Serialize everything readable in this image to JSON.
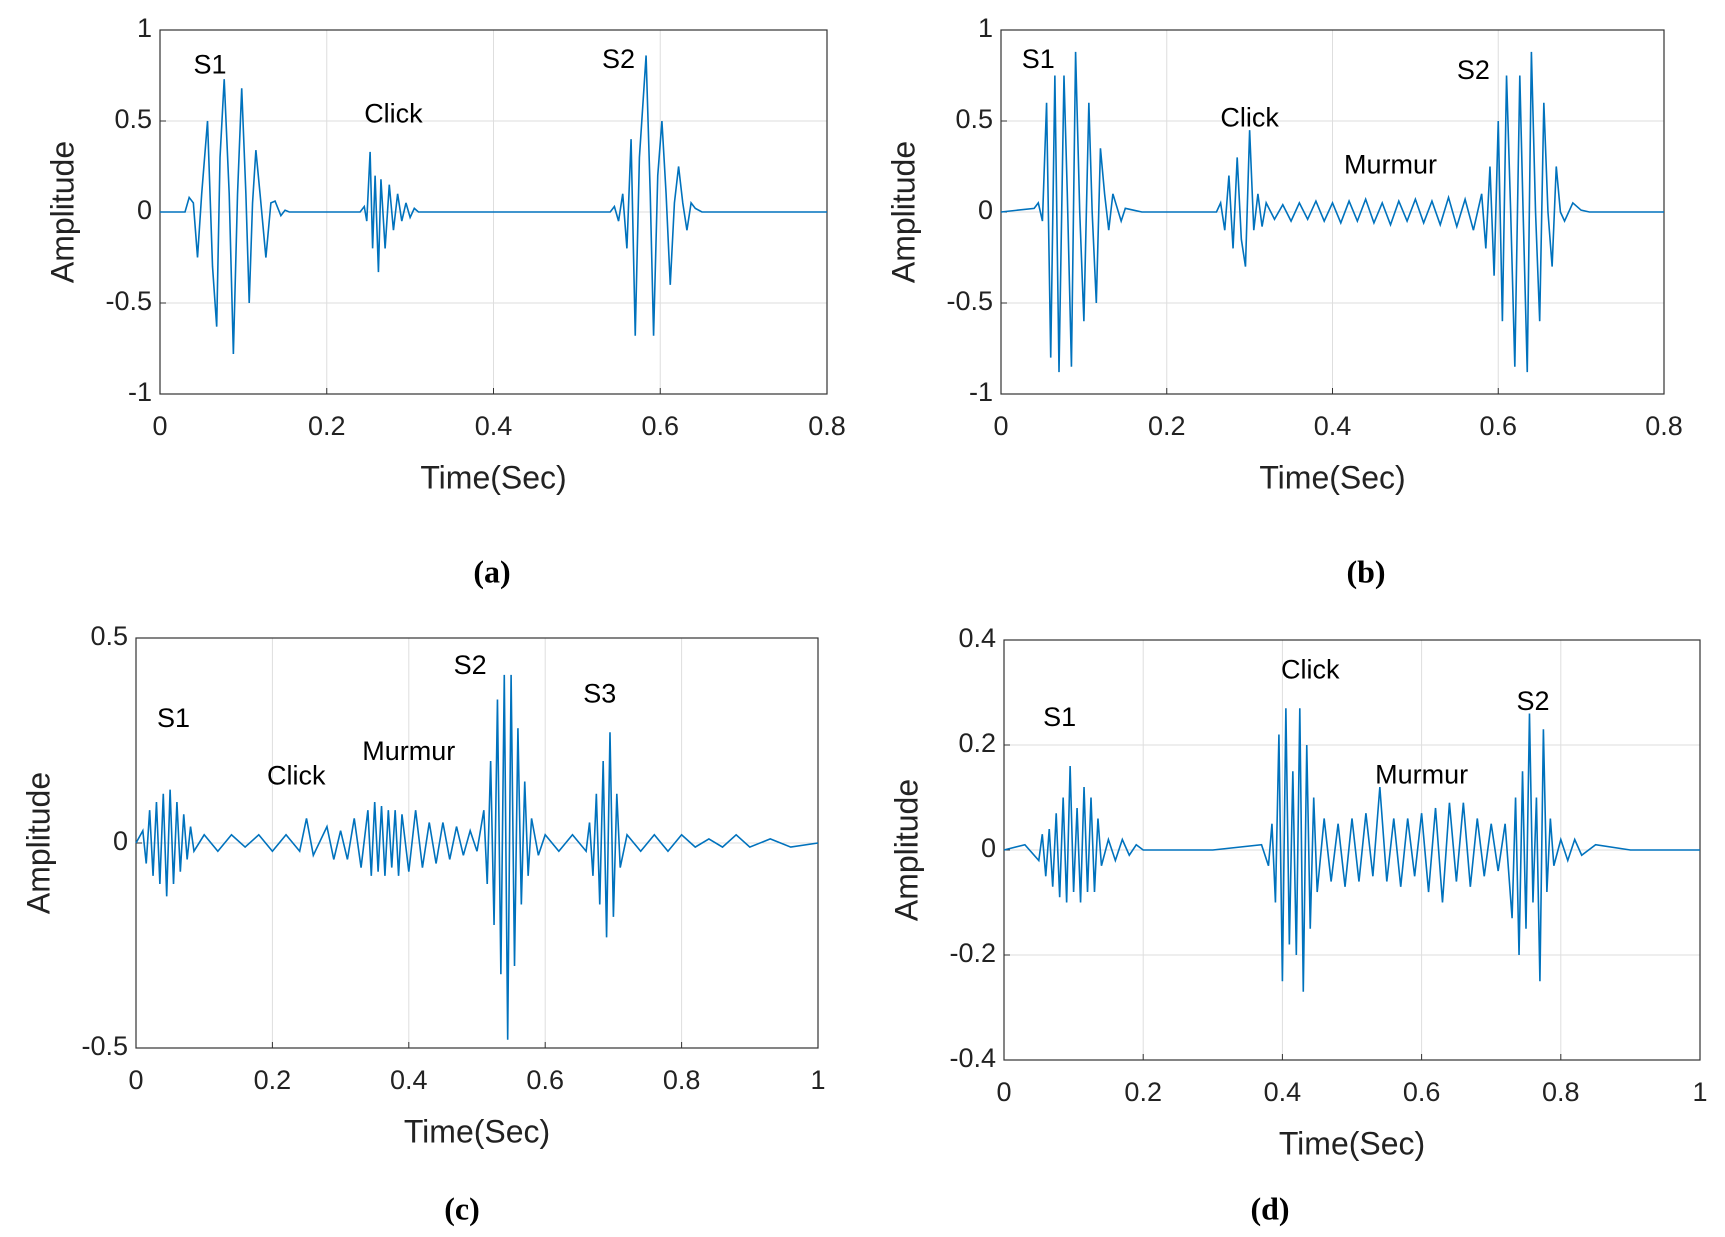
{
  "chart_data": [
    {
      "type": "line",
      "color": "#0072bd",
      "xlabel": "Time(Sec)",
      "ylabel": "Amplitude",
      "caption": "(a)",
      "grid": true,
      "xlim": [
        0,
        0.8
      ],
      "xticks": [
        0,
        0.2,
        0.4,
        0.6,
        0.8
      ],
      "ylim": [
        -1,
        1
      ],
      "yticks": [
        -1,
        -0.5,
        0,
        0.5,
        1
      ],
      "annotations": [
        {
          "text": "S1",
          "x": 0.06,
          "y": 0.8
        },
        {
          "text": "Click",
          "x": 0.28,
          "y": 0.53
        },
        {
          "text": "S2",
          "x": 0.55,
          "y": 0.83
        }
      ],
      "x": [
        0,
        0.03,
        0.035,
        0.04,
        0.045,
        0.05,
        0.057,
        0.063,
        0.068,
        0.072,
        0.077,
        0.083,
        0.088,
        0.093,
        0.098,
        0.103,
        0.107,
        0.111,
        0.115,
        0.12,
        0.127,
        0.133,
        0.138,
        0.145,
        0.15,
        0.155,
        0.24,
        0.245,
        0.248,
        0.252,
        0.255,
        0.258,
        0.262,
        0.265,
        0.27,
        0.275,
        0.28,
        0.285,
        0.29,
        0.295,
        0.3,
        0.305,
        0.31,
        0.54,
        0.545,
        0.55,
        0.555,
        0.56,
        0.565,
        0.57,
        0.575,
        0.583,
        0.588,
        0.592,
        0.597,
        0.602,
        0.607,
        0.612,
        0.617,
        0.622,
        0.627,
        0.632,
        0.637,
        0.642,
        0.65,
        0.8
      ],
      "values": [
        0,
        0,
        0.08,
        0.05,
        -0.25,
        0.1,
        0.5,
        -0.3,
        -0.63,
        0.3,
        0.73,
        0.1,
        -0.78,
        0.1,
        0.68,
        0.1,
        -0.5,
        0.05,
        0.34,
        0.1,
        -0.25,
        0.05,
        0.06,
        -0.02,
        0.01,
        0,
        0,
        0.03,
        -0.05,
        0.33,
        -0.2,
        0.2,
        -0.33,
        0.18,
        -0.2,
        0.15,
        -0.1,
        0.1,
        -0.05,
        0.05,
        -0.03,
        0.02,
        0,
        0,
        0.03,
        -0.05,
        0.1,
        -0.2,
        0.4,
        -0.68,
        0.3,
        0.86,
        0.1,
        -0.68,
        0.2,
        0.5,
        0.1,
        -0.4,
        0.05,
        0.25,
        0.05,
        -0.1,
        0.05,
        0.02,
        0,
        0
      ]
    },
    {
      "type": "line",
      "color": "#0072bd",
      "xlabel": "Time(Sec)",
      "ylabel": "Amplitude",
      "caption": "(b)",
      "grid": true,
      "xlim": [
        0,
        0.8
      ],
      "xticks": [
        0,
        0.2,
        0.4,
        0.6,
        0.8
      ],
      "ylim": [
        -1,
        1
      ],
      "yticks": [
        -1,
        -0.5,
        0,
        0.5,
        1
      ],
      "annotations": [
        {
          "text": "S1",
          "x": 0.045,
          "y": 0.83
        },
        {
          "text": "Click",
          "x": 0.3,
          "y": 0.51
        },
        {
          "text": "Murmur",
          "x": 0.47,
          "y": 0.25
        },
        {
          "text": "S2",
          "x": 0.57,
          "y": 0.77
        }
      ],
      "x": [
        0,
        0.04,
        0.045,
        0.05,
        0.055,
        0.06,
        0.065,
        0.07,
        0.076,
        0.08,
        0.085,
        0.09,
        0.095,
        0.1,
        0.106,
        0.11,
        0.115,
        0.12,
        0.125,
        0.13,
        0.135,
        0.145,
        0.15,
        0.16,
        0.17,
        0.26,
        0.265,
        0.27,
        0.275,
        0.28,
        0.285,
        0.29,
        0.295,
        0.3,
        0.305,
        0.31,
        0.315,
        0.32,
        0.33,
        0.34,
        0.35,
        0.36,
        0.37,
        0.38,
        0.39,
        0.4,
        0.41,
        0.42,
        0.43,
        0.44,
        0.45,
        0.46,
        0.47,
        0.48,
        0.49,
        0.5,
        0.51,
        0.52,
        0.53,
        0.54,
        0.55,
        0.56,
        0.57,
        0.58,
        0.585,
        0.59,
        0.595,
        0.6,
        0.605,
        0.61,
        0.615,
        0.62,
        0.626,
        0.63,
        0.635,
        0.64,
        0.645,
        0.65,
        0.655,
        0.66,
        0.665,
        0.67,
        0.675,
        0.68,
        0.69,
        0.7,
        0.71,
        0.8
      ],
      "values": [
        0,
        0.02,
        0.05,
        -0.05,
        0.6,
        -0.8,
        0.75,
        -0.88,
        0.75,
        0.1,
        -0.85,
        0.88,
        0,
        -0.6,
        0.6,
        0,
        -0.5,
        0.35,
        0.1,
        -0.1,
        0.1,
        -0.05,
        0.02,
        0.01,
        0,
        0,
        0.05,
        -0.1,
        0.2,
        -0.2,
        0.3,
        -0.15,
        -0.3,
        0.45,
        -0.1,
        0.1,
        -0.08,
        0.05,
        -0.04,
        0.04,
        -0.05,
        0.05,
        -0.04,
        0.06,
        -0.05,
        0.05,
        -0.06,
        0.06,
        -0.05,
        0.07,
        -0.06,
        0.05,
        -0.07,
        0.06,
        -0.05,
        0.07,
        -0.06,
        0.06,
        -0.07,
        0.08,
        -0.08,
        0.07,
        -0.1,
        0.1,
        -0.2,
        0.25,
        -0.35,
        0.5,
        -0.6,
        0.75,
        0,
        -0.85,
        0.75,
        0,
        -0.88,
        0.88,
        0,
        -0.6,
        0.6,
        0,
        -0.3,
        0.25,
        0,
        -0.05,
        0.05,
        0.01,
        0,
        0
      ]
    },
    {
      "type": "line",
      "color": "#0072bd",
      "xlabel": "Time(Sec)",
      "ylabel": "Amplitude",
      "caption": "(c)",
      "grid": true,
      "xlim": [
        0,
        1
      ],
      "xticks": [
        0,
        0.2,
        0.4,
        0.6,
        0.8,
        1
      ],
      "ylim": [
        -0.5,
        0.5
      ],
      "yticks": [
        -0.5,
        0,
        0.5
      ],
      "annotations": [
        {
          "text": "S1",
          "x": 0.055,
          "y": 0.3
        },
        {
          "text": "Click",
          "x": 0.235,
          "y": 0.16
        },
        {
          "text": "Murmur",
          "x": 0.4,
          "y": 0.22
        },
        {
          "text": "S2",
          "x": 0.49,
          "y": 0.43
        },
        {
          "text": "S3",
          "x": 0.68,
          "y": 0.36
        }
      ],
      "x": [
        0,
        0.01,
        0.015,
        0.02,
        0.025,
        0.03,
        0.035,
        0.04,
        0.045,
        0.05,
        0.055,
        0.06,
        0.065,
        0.07,
        0.075,
        0.08,
        0.085,
        0.1,
        0.12,
        0.14,
        0.16,
        0.18,
        0.2,
        0.22,
        0.24,
        0.25,
        0.26,
        0.28,
        0.29,
        0.3,
        0.31,
        0.32,
        0.33,
        0.34,
        0.345,
        0.35,
        0.355,
        0.36,
        0.365,
        0.37,
        0.375,
        0.38,
        0.385,
        0.39,
        0.4,
        0.41,
        0.42,
        0.43,
        0.44,
        0.45,
        0.46,
        0.47,
        0.48,
        0.49,
        0.5,
        0.51,
        0.515,
        0.52,
        0.525,
        0.53,
        0.535,
        0.54,
        0.545,
        0.55,
        0.555,
        0.56,
        0.565,
        0.57,
        0.575,
        0.58,
        0.59,
        0.6,
        0.62,
        0.64,
        0.66,
        0.665,
        0.67,
        0.675,
        0.68,
        0.685,
        0.69,
        0.695,
        0.7,
        0.705,
        0.71,
        0.72,
        0.74,
        0.76,
        0.78,
        0.8,
        0.82,
        0.84,
        0.86,
        0.88,
        0.9,
        0.93,
        0.96,
        1
      ],
      "values": [
        0,
        0.03,
        -0.05,
        0.08,
        -0.08,
        0.1,
        -0.1,
        0.12,
        -0.13,
        0.13,
        -0.1,
        0.1,
        -0.07,
        0.07,
        -0.04,
        0.04,
        -0.02,
        0.02,
        -0.02,
        0.02,
        -0.01,
        0.02,
        -0.02,
        0.02,
        -0.02,
        0.06,
        -0.03,
        0.04,
        -0.04,
        0.03,
        -0.04,
        0.06,
        -0.06,
        0.08,
        -0.08,
        0.1,
        -0.07,
        0.09,
        -0.08,
        0.08,
        -0.06,
        0.08,
        -0.08,
        0.07,
        -0.07,
        0.08,
        -0.06,
        0.05,
        -0.05,
        0.05,
        -0.04,
        0.04,
        -0.03,
        0.03,
        -0.02,
        0.08,
        -0.1,
        0.2,
        -0.2,
        0.35,
        -0.32,
        0.41,
        -0.48,
        0.41,
        -0.3,
        0.28,
        -0.15,
        0.15,
        -0.08,
        0.06,
        -0.03,
        0.02,
        -0.02,
        0.02,
        -0.02,
        0.05,
        -0.08,
        0.12,
        -0.15,
        0.2,
        -0.23,
        0.27,
        -0.18,
        0.12,
        -0.06,
        0.02,
        -0.02,
        0.02,
        -0.02,
        0.02,
        -0.01,
        0.01,
        -0.01,
        0.02,
        -0.01,
        0.01,
        -0.01,
        0
      ]
    },
    {
      "type": "line",
      "color": "#0072bd",
      "xlabel": "Time(Sec)",
      "ylabel": "Amplitude",
      "caption": "(d)",
      "grid": true,
      "xlim": [
        0,
        1
      ],
      "xticks": [
        0,
        0.2,
        0.4,
        0.6,
        0.8,
        1
      ],
      "ylim": [
        -0.4,
        0.4
      ],
      "yticks": [
        -0.4,
        -0.2,
        0,
        0.2,
        0.4
      ],
      "annotations": [
        {
          "text": "S1",
          "x": 0.08,
          "y": 0.25
        },
        {
          "text": "Click",
          "x": 0.44,
          "y": 0.34
        },
        {
          "text": "Murmur",
          "x": 0.6,
          "y": 0.14
        },
        {
          "text": "S2",
          "x": 0.76,
          "y": 0.28
        }
      ],
      "x": [
        0,
        0.03,
        0.05,
        0.055,
        0.06,
        0.065,
        0.07,
        0.075,
        0.08,
        0.085,
        0.09,
        0.095,
        0.1,
        0.105,
        0.11,
        0.115,
        0.12,
        0.125,
        0.13,
        0.135,
        0.14,
        0.15,
        0.16,
        0.17,
        0.18,
        0.19,
        0.2,
        0.3,
        0.37,
        0.38,
        0.385,
        0.39,
        0.395,
        0.4,
        0.405,
        0.41,
        0.415,
        0.42,
        0.425,
        0.43,
        0.435,
        0.44,
        0.445,
        0.45,
        0.46,
        0.47,
        0.48,
        0.49,
        0.5,
        0.51,
        0.52,
        0.53,
        0.54,
        0.55,
        0.56,
        0.57,
        0.58,
        0.59,
        0.6,
        0.61,
        0.62,
        0.63,
        0.64,
        0.65,
        0.66,
        0.67,
        0.68,
        0.69,
        0.7,
        0.71,
        0.72,
        0.73,
        0.735,
        0.74,
        0.745,
        0.75,
        0.755,
        0.76,
        0.765,
        0.77,
        0.775,
        0.78,
        0.785,
        0.79,
        0.8,
        0.81,
        0.82,
        0.83,
        0.85,
        0.9,
        1
      ],
      "values": [
        0,
        0.01,
        -0.02,
        0.03,
        -0.05,
        0.04,
        -0.07,
        0.07,
        -0.09,
        0.1,
        -0.1,
        0.16,
        -0.08,
        0.08,
        -0.1,
        0.12,
        -0.08,
        0.1,
        -0.08,
        0.06,
        -0.03,
        0.02,
        -0.02,
        0.02,
        -0.01,
        0.01,
        0,
        0,
        0.01,
        -0.03,
        0.05,
        -0.1,
        0.22,
        -0.25,
        0.27,
        -0.18,
        0.15,
        -0.2,
        0.27,
        -0.27,
        0.2,
        -0.15,
        0.1,
        -0.08,
        0.06,
        -0.06,
        0.05,
        -0.07,
        0.06,
        -0.06,
        0.07,
        -0.05,
        0.12,
        -0.06,
        0.06,
        -0.07,
        0.06,
        -0.05,
        0.07,
        -0.08,
        0.08,
        -0.1,
        0.09,
        -0.06,
        0.09,
        -0.07,
        0.06,
        -0.05,
        0.05,
        -0.04,
        0.05,
        -0.13,
        0.1,
        -0.2,
        0.15,
        -0.15,
        0.26,
        -0.1,
        0.1,
        -0.25,
        0.23,
        -0.08,
        0.06,
        -0.03,
        0.02,
        -0.02,
        0.02,
        -0.01,
        0.01,
        0,
        0
      ]
    }
  ]
}
